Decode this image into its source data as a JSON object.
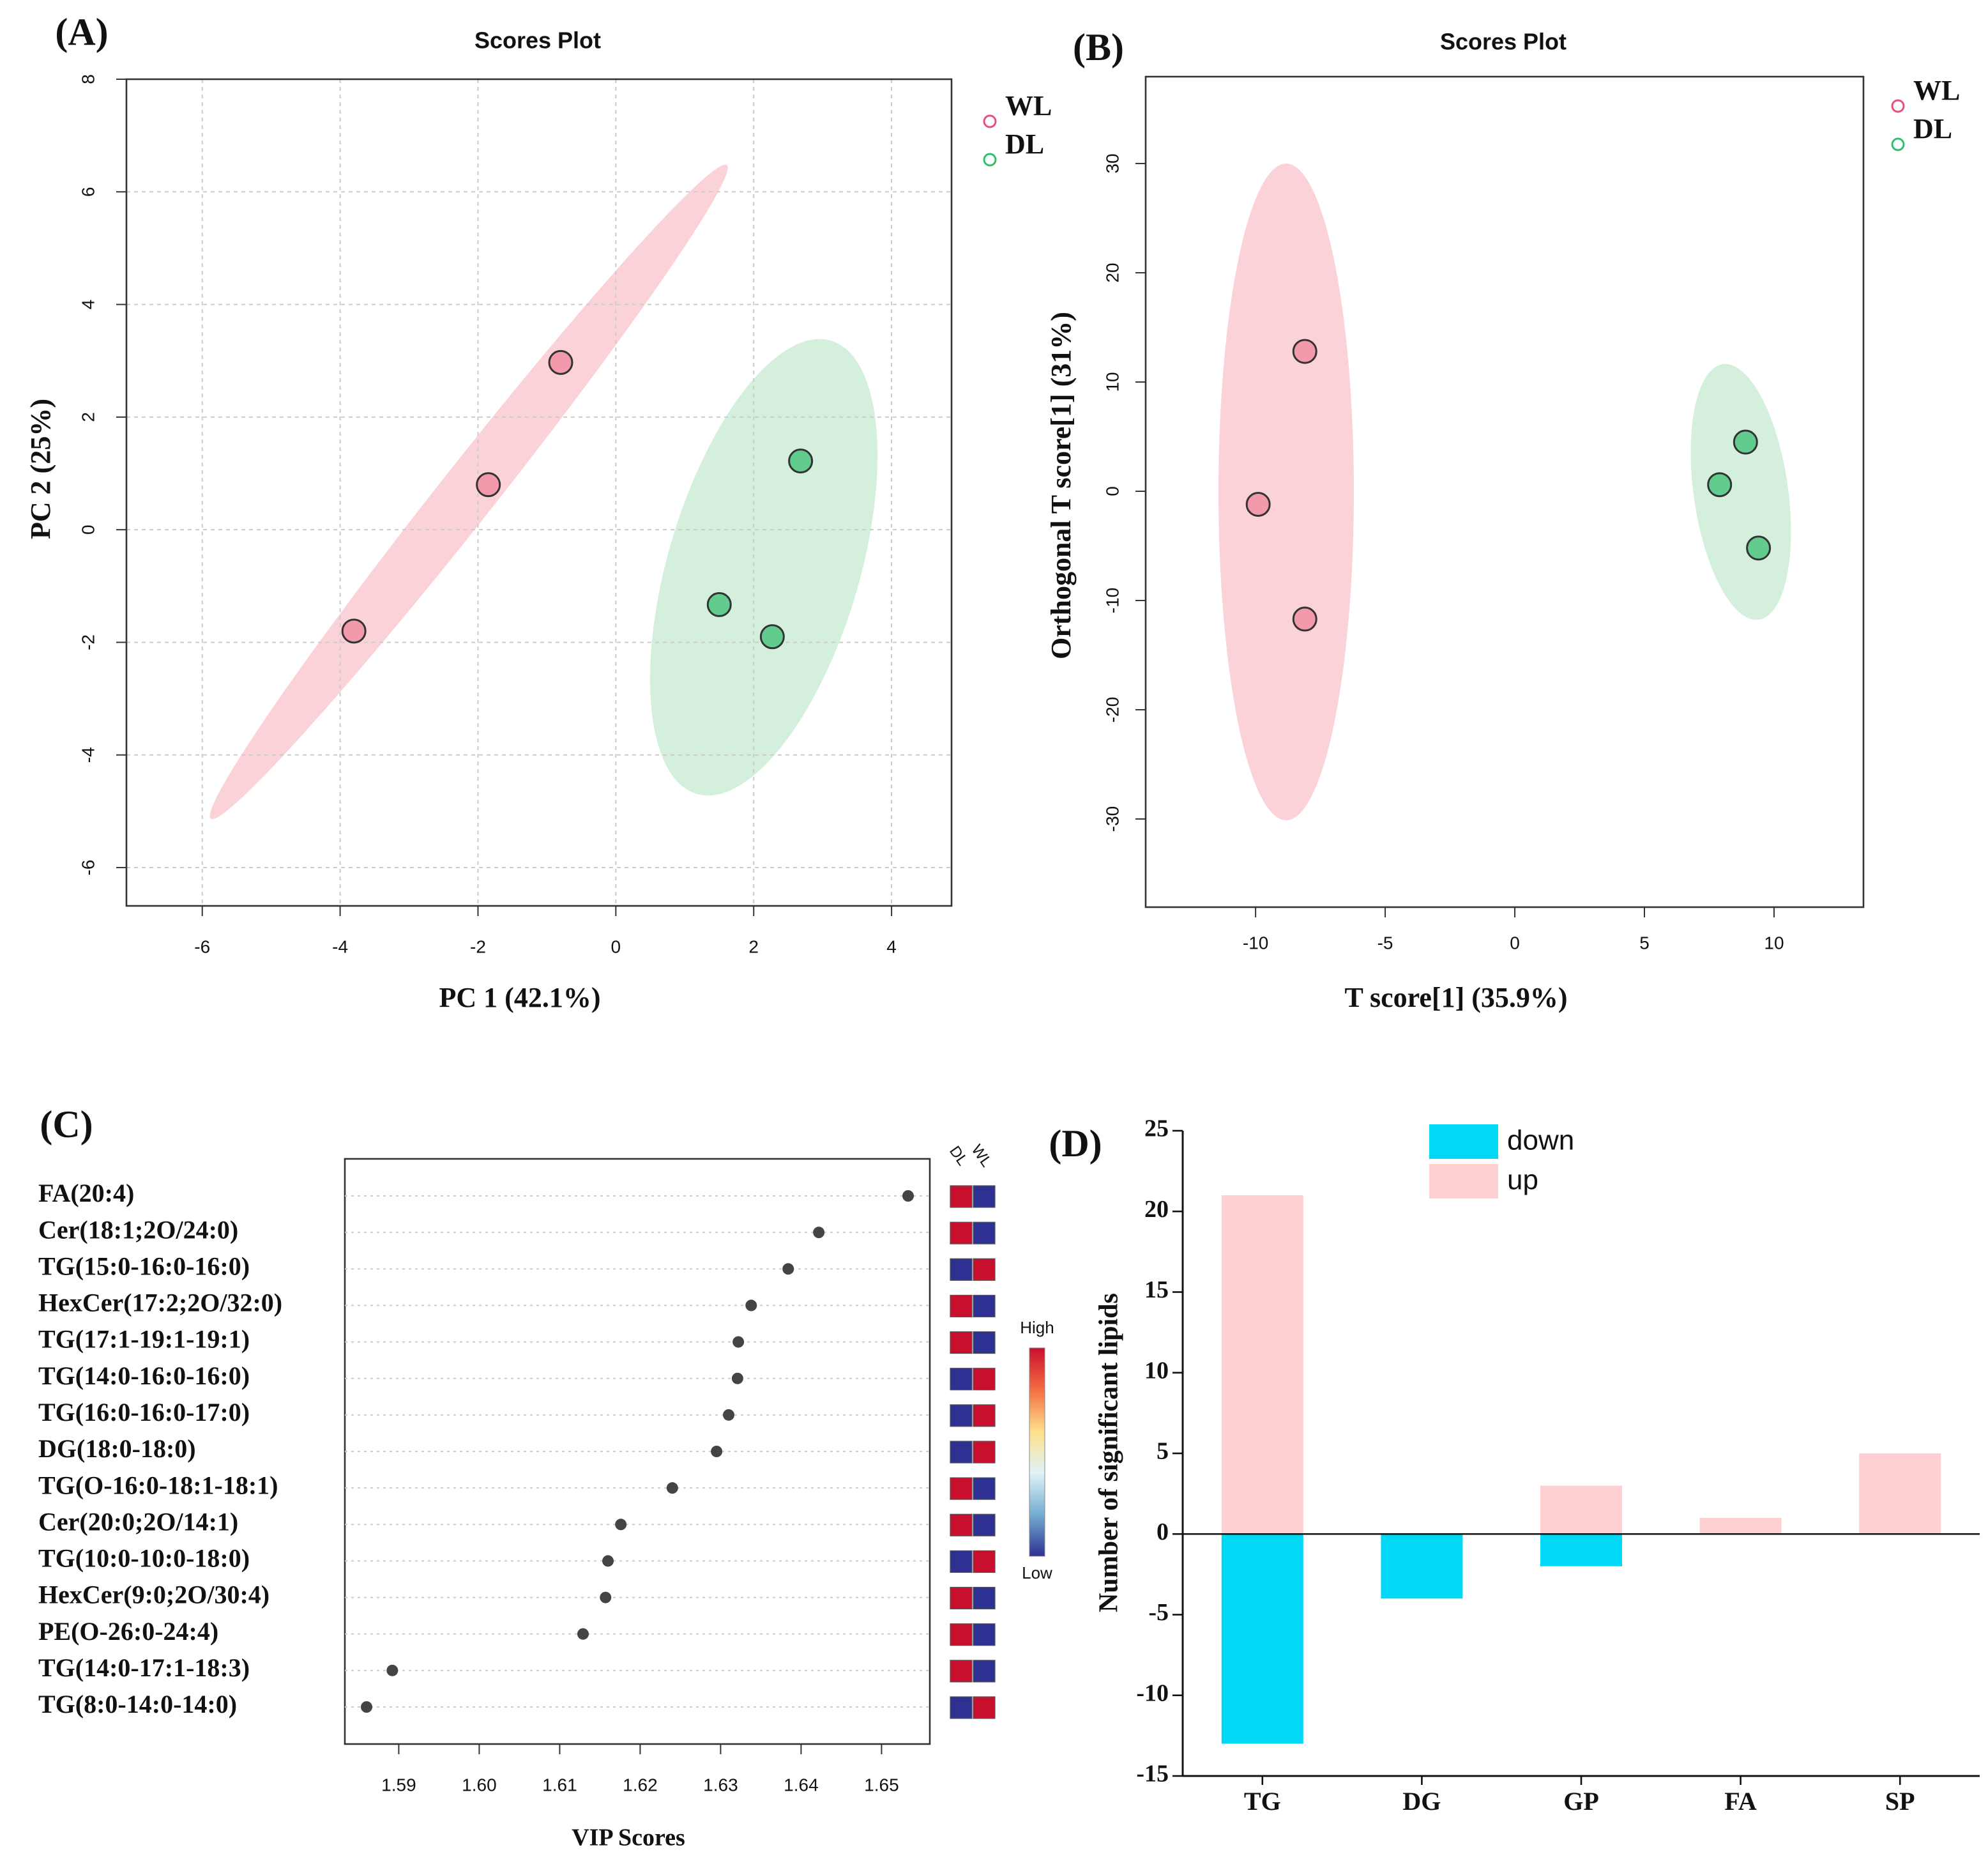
{
  "chart_data": [
    {
      "type": "scatter",
      "panel_label": "(A)",
      "title": "Scores Plot",
      "x_label": "PC 1 (42.1%)",
      "y_label": "PC 2 (25%)",
      "xlim": [
        -7.1,
        4.87
      ],
      "ylim": [
        -6.68,
        8
      ],
      "xticks": [
        -6,
        -4,
        -2,
        0,
        2,
        4
      ],
      "yticks": [
        -6,
        -4,
        -2,
        0,
        2,
        4,
        6,
        8
      ],
      "grid": true,
      "legend": "right",
      "series": [
        {
          "name": "WL",
          "color": "#f29aac",
          "edge_color": "#e8507a",
          "x": [
            -3.8,
            -1.85,
            -0.8
          ],
          "values": [
            -1.8,
            0.8,
            2.97
          ]
        },
        {
          "name": "DL",
          "color": "#62cc8e",
          "edge_color": "#2fbf6f",
          "x": [
            1.5,
            2.27,
            2.68
          ],
          "values": [
            -1.33,
            -1.9,
            1.22
          ]
        }
      ]
    },
    {
      "type": "scatter",
      "panel_label": "(B)",
      "title": "Scores Plot",
      "x_label": "T score[1] (35.9%)",
      "y_label": "Orthogonal T score[1] (31%)",
      "xlim": [
        -14.24,
        13.45
      ],
      "ylim": [
        -38.07,
        37.95
      ],
      "xticks": [
        -10,
        -5,
        0,
        5,
        10
      ],
      "yticks": [
        -30,
        -20,
        -10,
        0,
        10,
        20,
        30
      ],
      "grid": false,
      "legend": "right",
      "series": [
        {
          "name": "WL",
          "color": "#f29aac",
          "edge_color": "#e8507a",
          "x": [
            -8.1,
            -9.9,
            -8.1
          ],
          "values": [
            12.8,
            -1.2,
            -11.7
          ]
        },
        {
          "name": "DL",
          "color": "#62cc8e",
          "edge_color": "#2fbf6f",
          "x": [
            8.9,
            7.9,
            9.4
          ],
          "values": [
            4.5,
            0.6,
            -5.2
          ]
        }
      ]
    },
    {
      "type": "dot",
      "panel_label": "(C)",
      "x_label": "VIP Scores",
      "xlim": [
        1.5833,
        1.656
      ],
      "xticks": [
        1.59,
        {
          "value": 1.6,
          "label": "1.60"
        },
        1.61,
        1.62,
        1.63,
        1.64,
        1.65
      ],
      "color": "#444444",
      "categories": [
        "FA(20:4)",
        "Cer(18:1;2O/24:0)",
        "TG(15:0-16:0-16:0)",
        "HexCer(17:2;2O/32:0)",
        "TG(17:1-19:1-19:1)",
        "TG(14:0-16:0-16:0)",
        "TG(16:0-16:0-17:0)",
        "DG(18:0-18:0)",
        "TG(O-16:0-18:1-18:1)",
        "Cer(20:0;2O/14:1)",
        "TG(10:0-10:0-18:0)",
        "HexCer(9:0;2O/30:4)",
        "PE(O-26:0-24:4)",
        "TG(14:0-17:1-18:3)",
        "TG(8:0-14:0-14:0)"
      ],
      "values": [
        1.6533,
        1.6422,
        1.6384,
        1.6338,
        1.6322,
        1.6321,
        1.631,
        1.6295,
        1.624,
        1.6176,
        1.616,
        1.6157,
        1.6129,
        1.5892,
        1.586
      ],
      "heatmap": {
        "columns": [
          "DL",
          "WL"
        ],
        "cells": [
          [
            "#c8102e",
            "#2e3192"
          ],
          [
            "#c8102e",
            "#2e3192"
          ],
          [
            "#2e3192",
            "#c8102e"
          ],
          [
            "#c8102e",
            "#2e3192"
          ],
          [
            "#c8102e",
            "#2e3192"
          ],
          [
            "#2e3192",
            "#c8102e"
          ],
          [
            "#2e3192",
            "#c8102e"
          ],
          [
            "#2e3192",
            "#c8102e"
          ],
          [
            "#c8102e",
            "#2e3192"
          ],
          [
            "#c8102e",
            "#2e3192"
          ],
          [
            "#2e3192",
            "#c8102e"
          ],
          [
            "#c8102e",
            "#2e3192"
          ],
          [
            "#c8102e",
            "#2e3192"
          ],
          [
            "#c8102e",
            "#2e3192"
          ],
          [
            "#2e3192",
            "#c8102e"
          ]
        ],
        "high_label": "High",
        "low_label": "Low",
        "colorbar": [
          "#c8102e",
          "#f46d43",
          "#fee08b",
          "#e0f3f8",
          "#74add1",
          "#2e3192"
        ]
      }
    },
    {
      "type": "bar",
      "panel_label": "(D)",
      "y_label": "Number of significant lipids",
      "ylim": [
        -15,
        25
      ],
      "yticks": [
        -15,
        -10,
        -5,
        0,
        5,
        10,
        15,
        20,
        25
      ],
      "legend": "top",
      "categories": [
        "TG",
        "DG",
        "GP",
        "FA",
        "SP"
      ],
      "series": [
        {
          "name": "down",
          "color": "#00d8f5",
          "values": [
            -13,
            -4,
            -2,
            0,
            0
          ]
        },
        {
          "name": "up",
          "color": "#ffd0d2",
          "values": [
            21,
            0,
            3,
            1,
            5
          ]
        }
      ]
    }
  ]
}
